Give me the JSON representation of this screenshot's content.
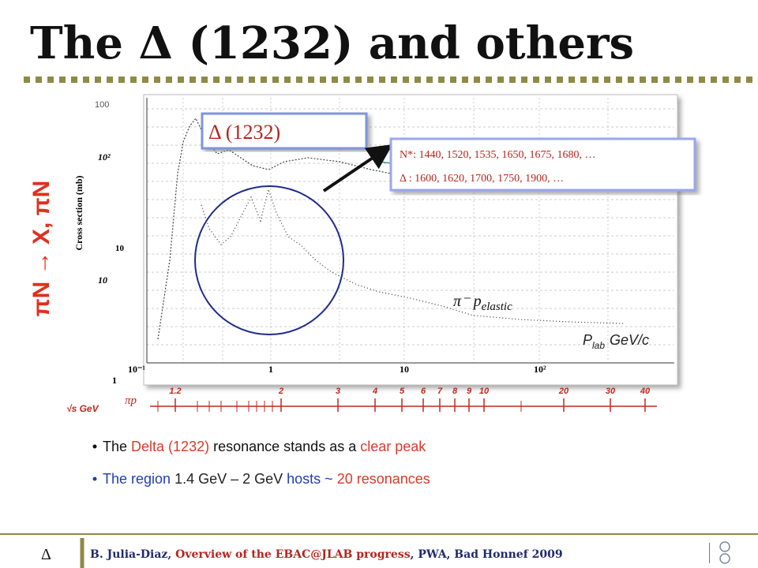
{
  "title": "The Δ (1232) and others",
  "side_label": "πN → X, πN",
  "plot": {
    "corner_label": "100",
    "y_axis_label": "Cross section (mb)",
    "y_ticks": [
      "10²",
      "10",
      "10",
      "1"
    ],
    "x_ticks": [
      "10⁻¹",
      "1",
      "10",
      "10²"
    ],
    "x_axis_label": {
      "symbol": "P",
      "subscript": "lab",
      "unit": "GeV/c"
    },
    "curve_label": {
      "text": "π⁻ p",
      "subscript": "elastic"
    }
  },
  "sqrt_s_axis": {
    "label": "√s GeV",
    "reaction": "πp",
    "ticks": [
      "1.2",
      "2",
      "3",
      "4",
      "5",
      "6",
      "7",
      "8",
      "9",
      "10",
      "20",
      "30",
      "40"
    ]
  },
  "callout": "Δ (1232)",
  "resonances": [
    "N*: 1440, 1520, 1535, 1650, 1675, 1680, …",
    "Δ : 1600, 1620,  1700, 1750, 1900, …"
  ],
  "bullets": [
    [
      "The ",
      "Delta (1232)",
      " resonance stands as a ",
      "clear peak"
    ],
    [
      "The region ",
      "1.4 GeV – 2 GeV",
      " hosts ~ ",
      "20 resonances"
    ]
  ],
  "footer": {
    "symbol": "Δ",
    "author": "B. Julia-Diaz, ",
    "talk": "Overview of the EBAC@JLAB progress",
    "event": ",  PWA, Bad Honnef 2009"
  }
}
